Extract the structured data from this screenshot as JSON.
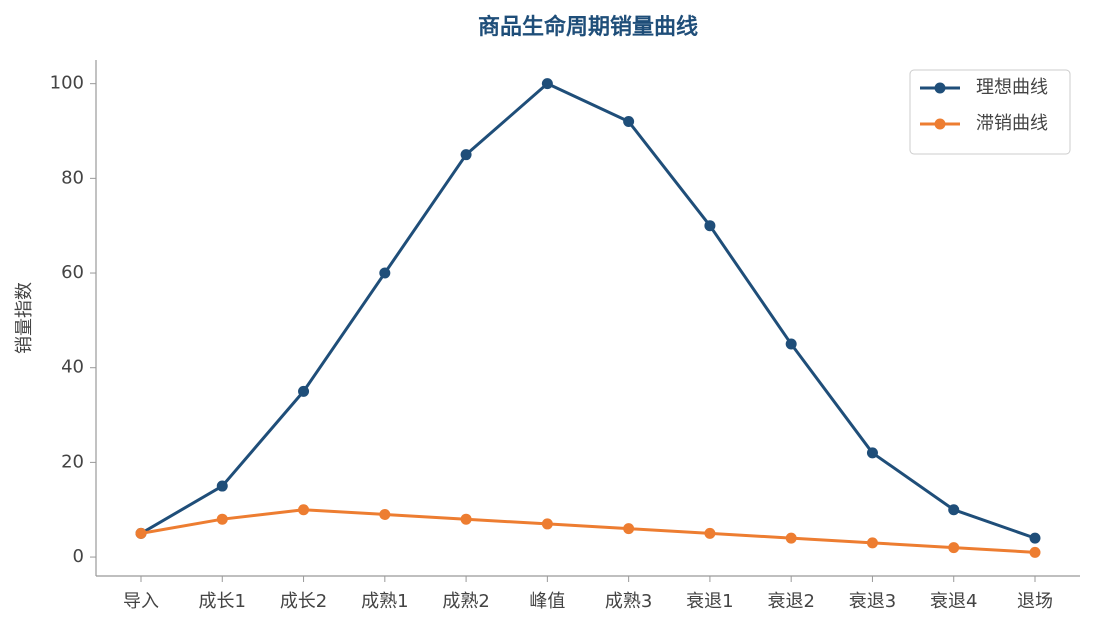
{
  "chart_data": {
    "type": "line",
    "title": "商品生命周期销量曲线",
    "ylabel": "销量指数",
    "categories": [
      "导入",
      "成长1",
      "成长2",
      "成熟1",
      "成熟2",
      "峰值",
      "成熟3",
      "衰退1",
      "衰退2",
      "衰退3",
      "衰退4",
      "退场"
    ],
    "series": [
      {
        "name": "理想曲线",
        "color": "#1f4e79",
        "values": [
          5,
          15,
          35,
          60,
          85,
          100,
          92,
          70,
          45,
          22,
          10,
          4
        ]
      },
      {
        "name": "滞销曲线",
        "color": "#ed7d31",
        "values": [
          5,
          8,
          10,
          9,
          8,
          7,
          6,
          5,
          4,
          3,
          2,
          1
        ]
      }
    ],
    "ylim": [
      -4,
      105
    ],
    "yticks": [
      0,
      20,
      40,
      60,
      80,
      100
    ],
    "grid": false,
    "legend": "upper-right"
  }
}
